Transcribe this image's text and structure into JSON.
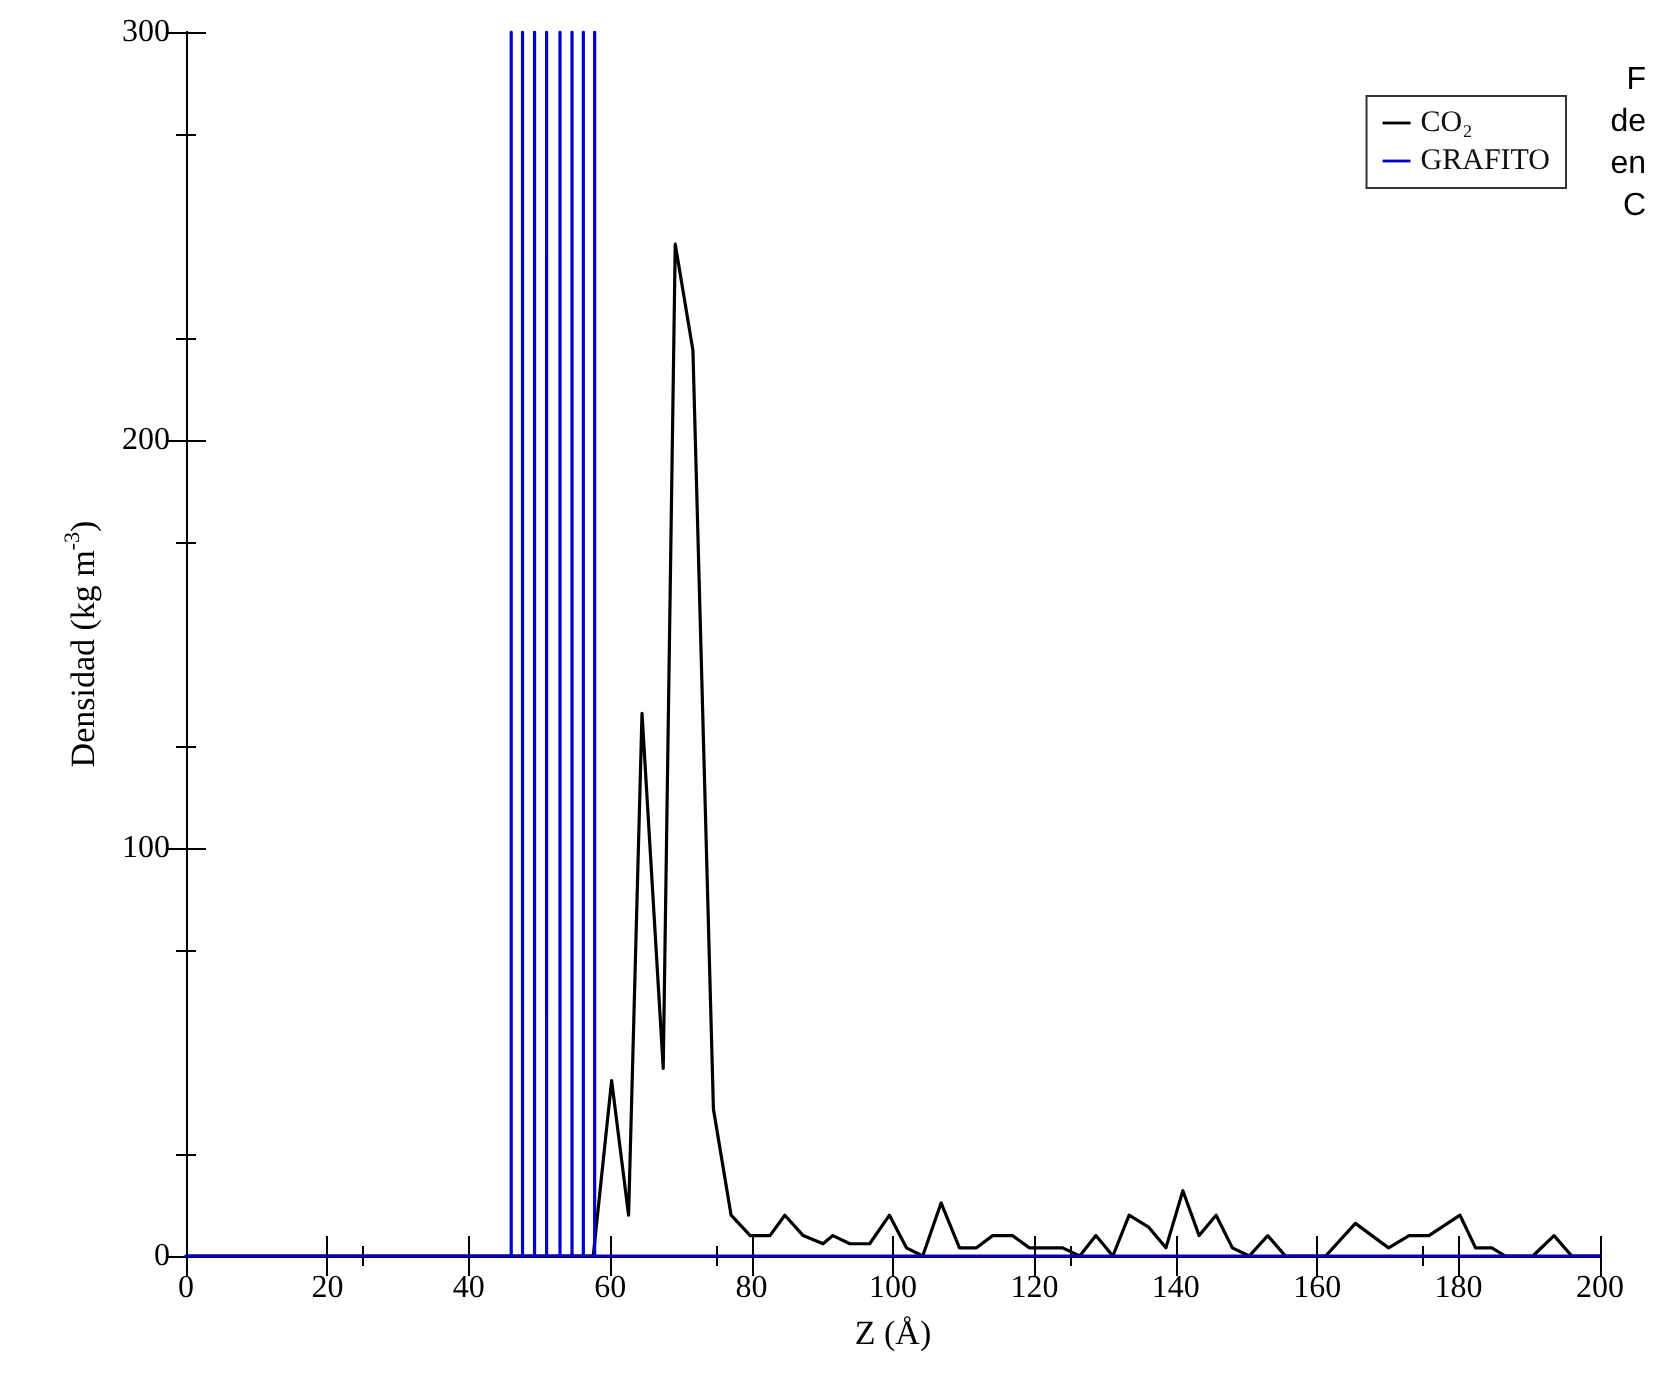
{
  "chart_data": {
    "type": "line",
    "xlabel": "Z (Å)",
    "ylabel": "Densidad (kg m$^{-3}$)",
    "xlim": [
      0,
      200
    ],
    "ylim": [
      0,
      300
    ],
    "xticks": [
      0,
      20,
      40,
      60,
      80,
      100,
      120,
      140,
      160,
      180,
      200
    ],
    "yticks": [
      0,
      100,
      200,
      300
    ],
    "grid": false,
    "legend": "top right",
    "marker": "none",
    "line_style": "solid",
    "annotations": [
      "F",
      "de",
      "en",
      "C"
    ],
    "series": [
      {
        "name": "CO₂",
        "color": "#000000",
        "x": [
          0,
          57.6,
          60.2,
          62.6,
          64.5,
          67.5,
          69.2,
          71.7,
          74.6,
          77.1,
          79.8,
          82.6,
          84.7,
          87.3,
          90.1,
          91.5,
          93.9,
          96.7,
          99.5,
          101.9,
          104.2,
          106.8,
          109.4,
          111.8,
          114.1,
          116.9,
          119.3,
          124,
          126.4,
          128.7,
          131.1,
          133.4,
          136.2,
          138.6,
          141,
          143.3,
          145.7,
          148,
          150.4,
          153,
          155.5,
          161.2,
          165.4,
          170.1,
          173,
          175.8,
          180.2,
          182.4,
          184.7,
          186.6,
          190.5,
          193.5,
          196,
          200
        ],
        "values": [
          0,
          0,
          43,
          10,
          133,
          46,
          248,
          222,
          36,
          10,
          5,
          5,
          10,
          5,
          3,
          5,
          3,
          3,
          10,
          2,
          0,
          13,
          2,
          2,
          5,
          5,
          2,
          2,
          0,
          5,
          0,
          10,
          7,
          2,
          16,
          5,
          10,
          2,
          0,
          5,
          0,
          0,
          8,
          2,
          5,
          5,
          10,
          2,
          2,
          0,
          0,
          5,
          0,
          0
        ]
      },
      {
        "name": "GRAFITO",
        "color": "#0000cc",
        "x": [
          0,
          46,
          46,
          46,
          47.6,
          47.6,
          47.6,
          49.3,
          49.3,
          49.3,
          51,
          51,
          51,
          52.9,
          52.9,
          52.9,
          54.6,
          54.6,
          54.6,
          56.2,
          56.2,
          56.2,
          57.8,
          57.8,
          57.8,
          200
        ],
        "values": [
          0,
          0,
          300,
          0,
          0,
          300,
          0,
          0,
          300,
          0,
          0,
          300,
          0,
          0,
          300,
          0,
          0,
          300,
          0,
          0,
          300,
          0,
          0,
          300,
          0,
          0
        ]
      }
    ]
  }
}
